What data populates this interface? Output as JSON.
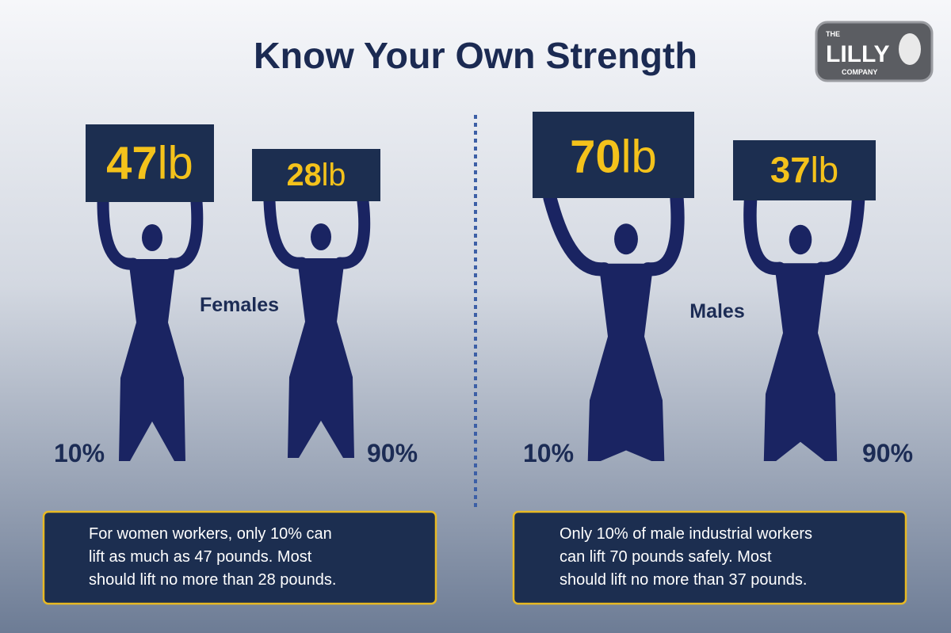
{
  "title": "Know Your Own Strength",
  "logo": {
    "top": "THE",
    "name": "LILLY",
    "bottom": "COMPANY"
  },
  "groups": [
    {
      "label": "Females",
      "figures": [
        {
          "weight": "47",
          "unit": "lb",
          "percentile": "10%"
        },
        {
          "weight": "28",
          "unit": "lb",
          "percentile": "90%"
        }
      ],
      "note": [
        "For women workers, only 10% can",
        "lift as much as 47 pounds. Most",
        "should lift no more than 28 pounds."
      ]
    },
    {
      "label": "Males",
      "figures": [
        {
          "weight": "70",
          "unit": "lb",
          "percentile": "10%"
        },
        {
          "weight": "37",
          "unit": "lb",
          "percentile": "90%"
        }
      ],
      "note": [
        "Only 10% of male industrial workers",
        "can lift 70 pounds safely. Most",
        "should lift no more than 37 pounds."
      ]
    }
  ]
}
